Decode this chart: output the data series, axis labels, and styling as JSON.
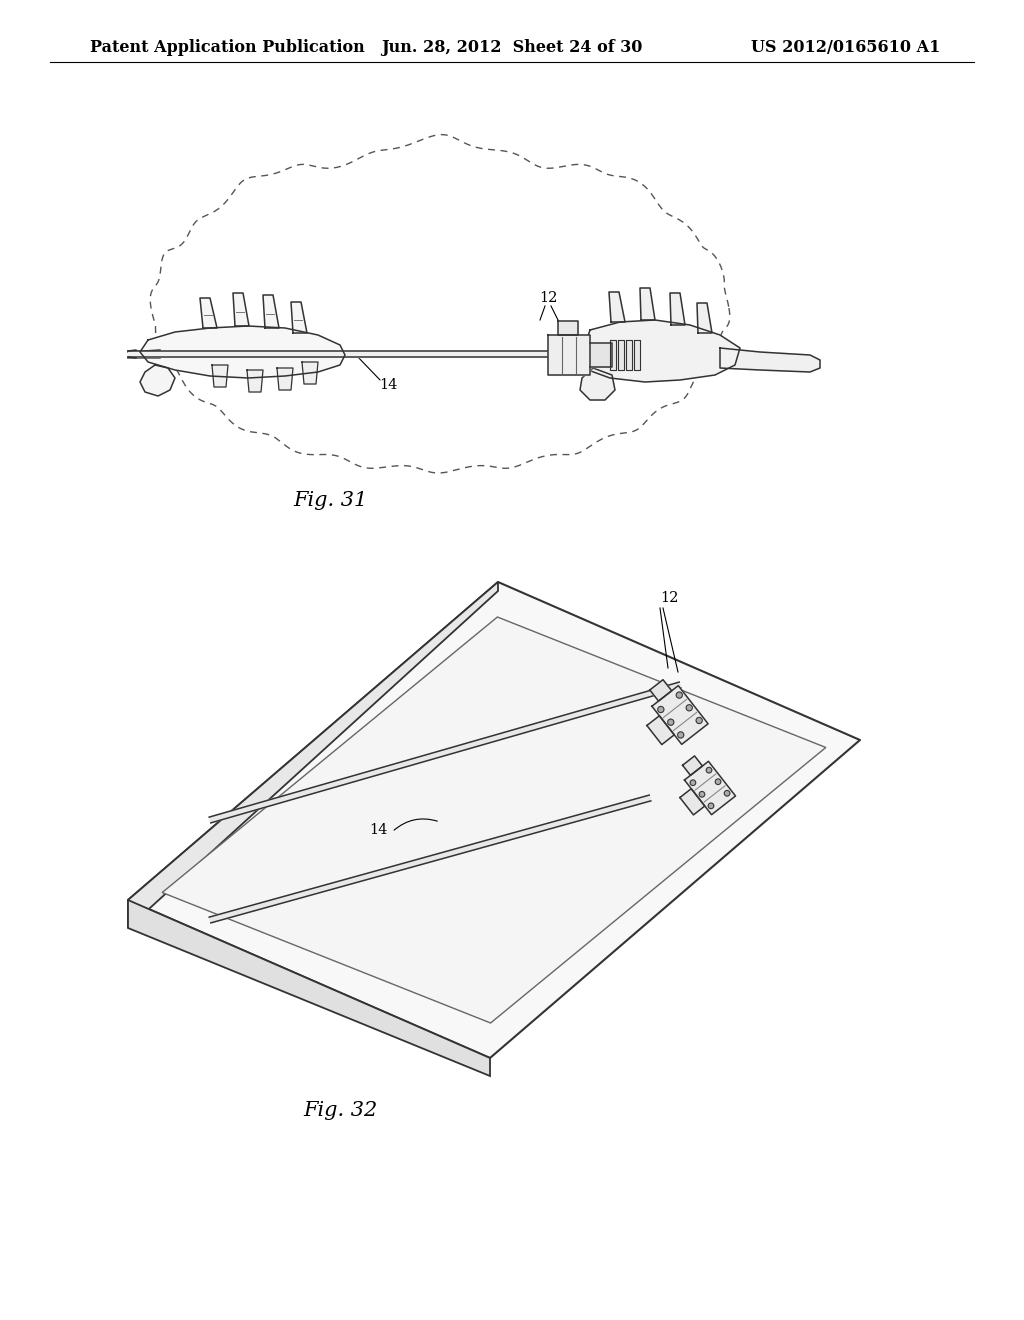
{
  "background_color": "#ffffff",
  "line_color": "#333333",
  "header_left": "Patent Application Publication",
  "header_center": "Jun. 28, 2012  Sheet 24 of 30",
  "header_right": "US 2012/0165610 A1",
  "fig31_caption": "Fig. 31",
  "fig32_caption": "Fig. 32",
  "caption_fontsize": 15,
  "header_fontsize": 11.5,
  "label_fontsize": 10.5
}
